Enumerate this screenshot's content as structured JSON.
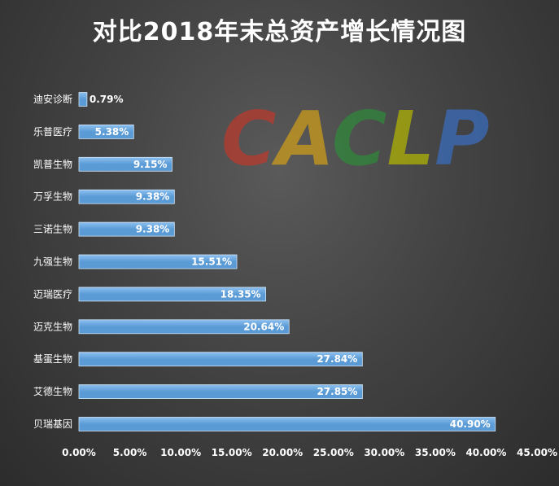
{
  "title": "对比2018年末总资产增长情况图",
  "watermark": {
    "text": "CACLP",
    "letters": [
      {
        "ch": "C",
        "color": "#c0392b"
      },
      {
        "ch": "A",
        "color": "#d4a017"
      },
      {
        "ch": "C",
        "color": "#2e8b3a"
      },
      {
        "ch": "L",
        "color": "#b5b800"
      },
      {
        "ch": "P",
        "color": "#3a6fc4"
      }
    ]
  },
  "colors": {
    "bar": "#5b9bd5",
    "bar_light": "#8cc0f0",
    "label_on_bar": "#ffffff",
    "label_outside": "#ffffff"
  },
  "chart_data": {
    "type": "bar",
    "orientation": "horizontal",
    "title": "对比2018年末总资产增长情况图",
    "categories": [
      "迪安诊断",
      "乐普医疗",
      "凯普生物",
      "万孚生物",
      "三诺生物",
      "九强生物",
      "迈瑞医疗",
      "迈克生物",
      "基蛋生物",
      "艾德生物",
      "贝瑞基因"
    ],
    "values": [
      0.79,
      5.38,
      9.15,
      9.38,
      9.38,
      15.51,
      18.35,
      20.64,
      27.84,
      27.85,
      40.9
    ],
    "data_labels": [
      "0.79%",
      "5.38%",
      "9.15%",
      "9.38%",
      "9.38%",
      "15.51%",
      "18.35%",
      "20.64%",
      "27.84%",
      "27.85%",
      "40.90%"
    ],
    "xlim": [
      0,
      45
    ],
    "xticks": [
      "0.00%",
      "5.00%",
      "10.00%",
      "15.00%",
      "20.00%",
      "25.00%",
      "30.00%",
      "35.00%",
      "40.00%",
      "45.00%"
    ],
    "xtick_values": [
      0,
      5,
      10,
      15,
      20,
      25,
      30,
      35,
      40,
      45
    ],
    "xlabel": "",
    "ylabel": "",
    "grid": false,
    "legend": "none"
  }
}
